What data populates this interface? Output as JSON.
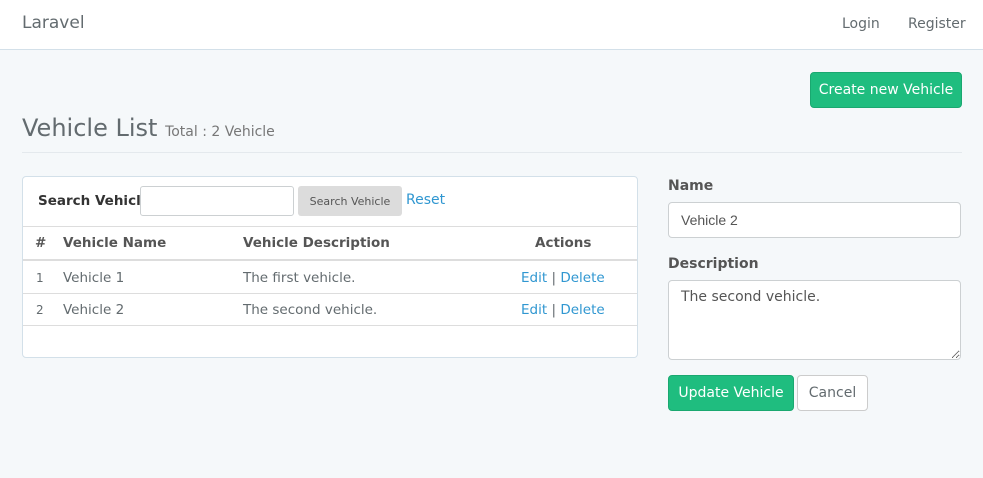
{
  "nav": {
    "brand": "Laravel",
    "login": "Login",
    "register": "Register"
  },
  "header": {
    "create_button": "Create new Vehicle",
    "title": "Vehicle List",
    "total": "Total : 2 Vehicle"
  },
  "search": {
    "label": "Search Vehicle",
    "value": "",
    "button": "Search Vehicle",
    "reset": "Reset"
  },
  "table": {
    "columns": [
      "#",
      "Vehicle Name",
      "Vehicle Description",
      "Actions"
    ],
    "rows": [
      {
        "num": "1",
        "name": "Vehicle 1",
        "description": "The first vehicle.",
        "edit": "Edit",
        "sep": "|",
        "delete": "Delete"
      },
      {
        "num": "2",
        "name": "Vehicle 2",
        "description": "The second vehicle.",
        "edit": "Edit",
        "sep": "|",
        "delete": "Delete"
      }
    ]
  },
  "form": {
    "name_label": "Name",
    "name_value": "Vehicle 2",
    "description_label": "Description",
    "description_value": "The second vehicle.",
    "update_button": "Update Vehicle",
    "cancel_button": "Cancel"
  },
  "colors": {
    "accent": "#1fbd7f",
    "link": "#3097d1"
  }
}
